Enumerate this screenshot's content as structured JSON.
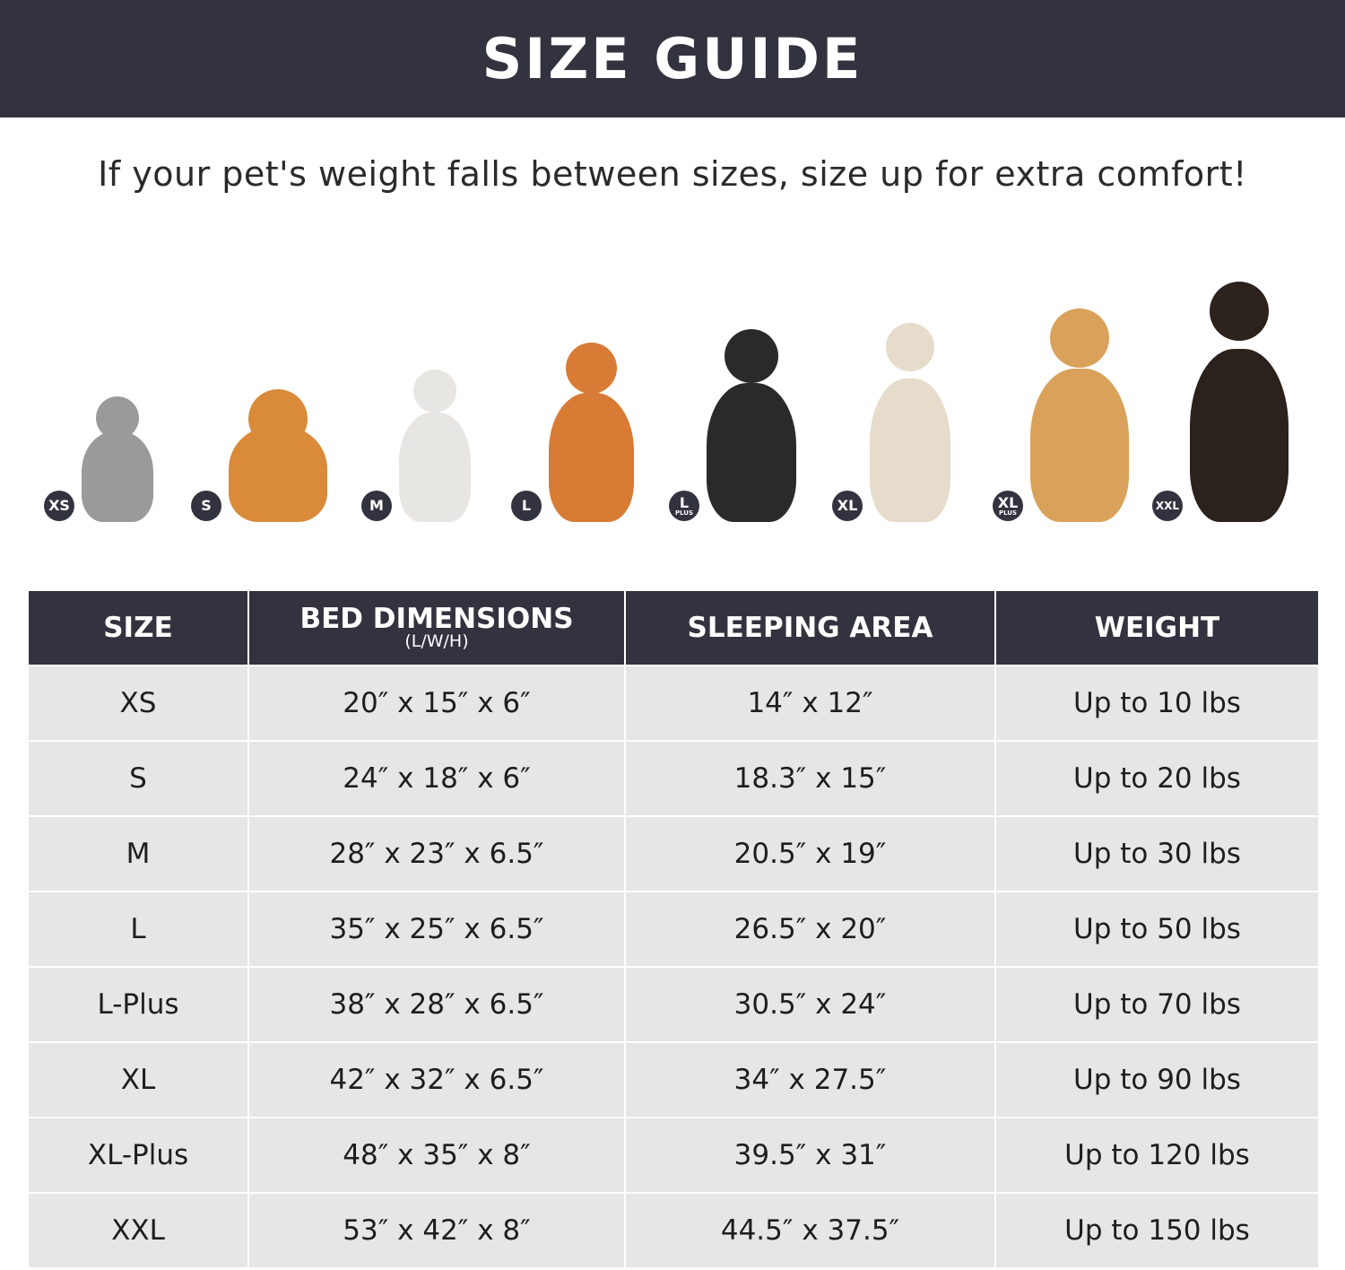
{
  "header": {
    "title": "SIZE GUIDE"
  },
  "subtitle": "If your pet's weight falls between sizes, size up for extra comfort!",
  "pets": [
    {
      "badge": "XS",
      "sub": "",
      "animal": "cat",
      "color": "#9a9a9a"
    },
    {
      "badge": "S",
      "sub": "",
      "animal": "pomeranian",
      "color": "#d98b3a"
    },
    {
      "badge": "M",
      "sub": "",
      "animal": "french-bulldog",
      "color": "#e8e6e2"
    },
    {
      "badge": "L",
      "sub": "",
      "animal": "shiba-inu",
      "color": "#d87b35"
    },
    {
      "badge": "L",
      "sub": "PLUS",
      "animal": "border-collie",
      "color": "#2a2a2a"
    },
    {
      "badge": "XL",
      "sub": "",
      "animal": "labrador",
      "color": "#e6dccb"
    },
    {
      "badge": "XL",
      "sub": "PLUS",
      "animal": "golden-retriever",
      "color": "#d9a15a"
    },
    {
      "badge": "XXL",
      "sub": "",
      "animal": "doberman",
      "color": "#2b211d"
    }
  ],
  "table": {
    "headers": [
      {
        "label": "SIZE",
        "sub": ""
      },
      {
        "label": "BED DIMENSIONS",
        "sub": "(L/W/H)"
      },
      {
        "label": "SLEEPING AREA",
        "sub": ""
      },
      {
        "label": "WEIGHT",
        "sub": ""
      }
    ],
    "rows": [
      [
        "XS",
        "20″ x 15″ x 6″",
        "14″ x 12″",
        "Up to 10 lbs"
      ],
      [
        "S",
        "24″ x 18″ x 6″",
        "18.3″ x 15″",
        "Up to 20 lbs"
      ],
      [
        "M",
        "28″ x 23″ x 6.5″",
        "20.5″ x 19″",
        "Up to 30 lbs"
      ],
      [
        "L",
        "35″ x 25″ x 6.5″",
        "26.5″ x 20″",
        "Up to 50 lbs"
      ],
      [
        "L-Plus",
        "38″ x 28″ x 6.5″",
        "30.5″ x 24″",
        "Up to 70 lbs"
      ],
      [
        "XL",
        "42″ x 32″ x 6.5″",
        "34″ x 27.5″",
        "Up to 90 lbs"
      ],
      [
        "XL-Plus",
        "48″ x 35″ x 8″",
        "39.5″ x 31″",
        "Up to 120 lbs"
      ],
      [
        "XXL",
        "53″ x 42″ x 8″",
        "44.5″ x 37.5″",
        "Up to 150 lbs"
      ]
    ]
  },
  "colors": {
    "dark": "#33333f",
    "row": "#e6e6e6"
  }
}
